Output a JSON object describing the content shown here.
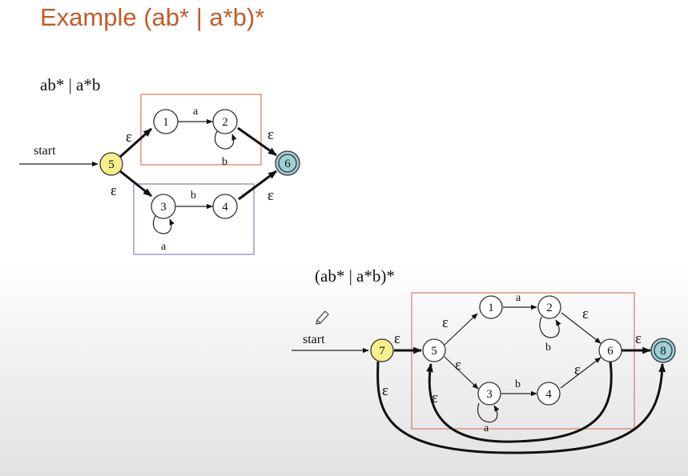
{
  "title": "Example (ab* | a*b)*",
  "colors": {
    "title": "#c55a28",
    "box_orange": "#d9866a",
    "box_purple": "#8d87bd",
    "start_state": "#f6f08c",
    "accept_state": "#9fd0d6"
  },
  "diagram1": {
    "heading": "ab* | a*b",
    "start_label": "start",
    "states": {
      "s1": "1",
      "s2": "2",
      "s3": "3",
      "s4": "4",
      "s5": "5",
      "s6": "6"
    },
    "labels": {
      "e51": "ε",
      "e53": "ε",
      "e26": "ε",
      "e46": "ε",
      "a12": "a",
      "b22": "b",
      "b34": "b",
      "a33": "a"
    }
  },
  "diagram2": {
    "heading": "(ab* | a*b)*",
    "start_label": "start",
    "states": {
      "s1": "1",
      "s2": "2",
      "s3": "3",
      "s4": "4",
      "s5": "5",
      "s6": "6",
      "s7": "7",
      "s8": "8"
    },
    "labels": {
      "e75": "ε",
      "e51": "ε",
      "e53": "ε",
      "e26": "ε",
      "e46": "ε",
      "e68": "ε",
      "e78": "ε",
      "e65": "ε",
      "a12": "a",
      "b22": "b",
      "b34": "b",
      "a33": "a"
    }
  }
}
